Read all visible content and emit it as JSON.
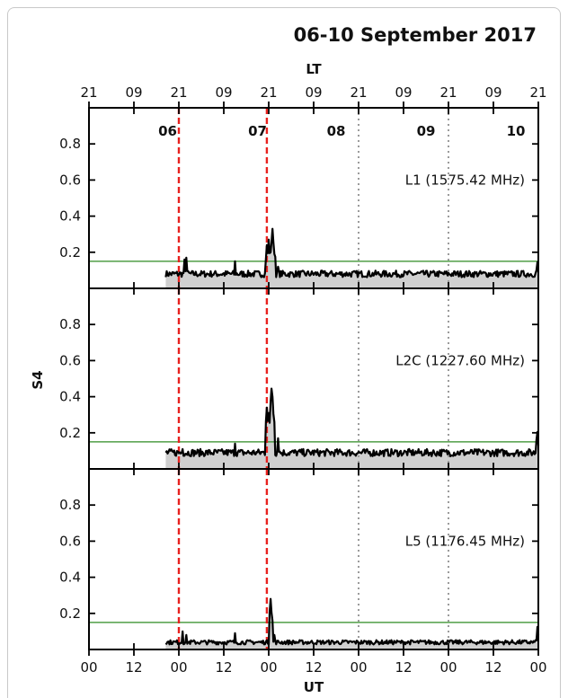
{
  "figure": {
    "title": "06-10 September 2017",
    "top_axis_label": "LT",
    "bottom_axis_label": "UT",
    "y_axis_label": "S4"
  },
  "chart_data": {
    "type": "line",
    "x_unit": "hours since 06 Sep 2017 00 UT",
    "xlim": [
      0,
      120
    ],
    "ylim": [
      0,
      1.0
    ],
    "x_ticks": [
      0,
      12,
      24,
      36,
      48,
      60,
      72,
      84,
      96,
      108,
      120
    ],
    "bottom_tick_labels": [
      "00",
      "12",
      "00",
      "12",
      "00",
      "12",
      "00",
      "12",
      "00",
      "12",
      "00"
    ],
    "top_tick_labels": [
      "21",
      "09",
      "21",
      "09",
      "21",
      "09",
      "21",
      "09",
      "21",
      "09",
      "21"
    ],
    "y_ticks": [
      0.2,
      0.4,
      0.6,
      0.8
    ],
    "y_tick_labels": [
      "0.2",
      "0.4",
      "0.6",
      "0.8"
    ],
    "day_labels": [
      {
        "text": "06",
        "x": 21
      },
      {
        "text": "07",
        "x": 45
      },
      {
        "text": "08",
        "x": 66
      },
      {
        "text": "09",
        "x": 90
      },
      {
        "text": "10",
        "x": 114
      }
    ],
    "vlines": [
      {
        "x": 24,
        "style": "dashed",
        "color": "#e8211e"
      },
      {
        "x": 47.5,
        "style": "dashed",
        "color": "#e8211e"
      },
      {
        "x": 72,
        "style": "dotted",
        "color": "#9b9b9b"
      },
      {
        "x": 96,
        "style": "dotted",
        "color": "#9b9b9b"
      }
    ],
    "threshold": {
      "y": 0.15,
      "color": "#2e8b22"
    },
    "series_color": "#000000",
    "fill_color": "#d0d0d0",
    "panels": [
      {
        "name": "L1 (1575.42 MHz)",
        "baseline": 0.08,
        "noise": 0.018,
        "start": 20.5,
        "peaks": [
          [
            25.5,
            0.16
          ],
          [
            26,
            0.17
          ],
          [
            39,
            0.15
          ],
          [
            47.5,
            0.24
          ],
          [
            48,
            0.27
          ],
          [
            48.5,
            0.2
          ],
          [
            49,
            0.33
          ],
          [
            49.6,
            0.22
          ],
          [
            50.5,
            0.12
          ],
          [
            119.7,
            0.16
          ]
        ]
      },
      {
        "name": "L2C (1227.60 MHz)",
        "baseline": 0.09,
        "noise": 0.02,
        "start": 20.5,
        "peaks": [
          [
            25,
            0.11
          ],
          [
            39,
            0.14
          ],
          [
            47.5,
            0.34
          ],
          [
            48,
            0.31
          ],
          [
            48.4,
            0.3
          ],
          [
            48.8,
            0.46
          ],
          [
            49.3,
            0.32
          ],
          [
            50.5,
            0.17
          ],
          [
            119.7,
            0.22
          ]
        ]
      },
      {
        "name": "L5 (1176.45 MHz)",
        "baseline": 0.04,
        "noise": 0.012,
        "start": 20.5,
        "peaks": [
          [
            25,
            0.1
          ],
          [
            26,
            0.08
          ],
          [
            39,
            0.09
          ],
          [
            48.5,
            0.28
          ],
          [
            48.9,
            0.19
          ],
          [
            49.5,
            0.08
          ],
          [
            119.8,
            0.14
          ]
        ]
      }
    ]
  }
}
